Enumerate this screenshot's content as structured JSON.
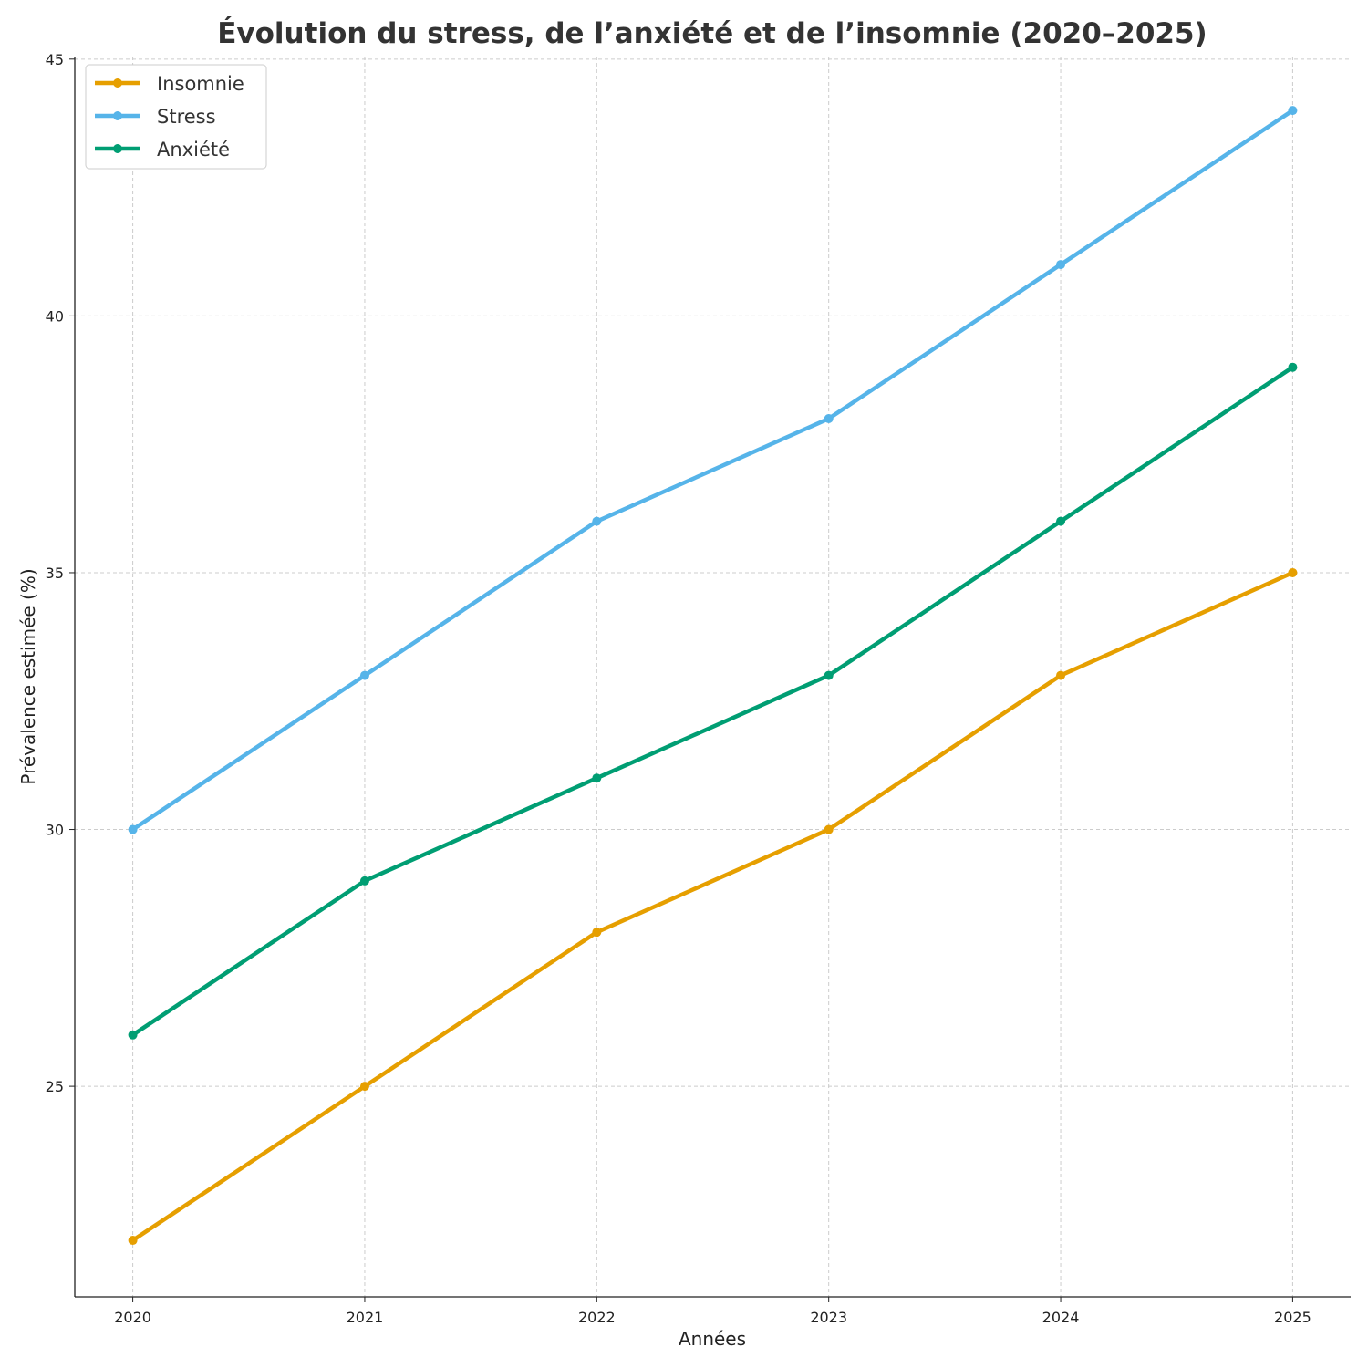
{
  "chart_data": {
    "type": "line",
    "title": "Évolution du stress, de l’anxiété et de l’insomnie (2020–2025)",
    "xlabel": "Années",
    "ylabel": "Prévalence estimée (%)",
    "x": [
      2020,
      2021,
      2022,
      2023,
      2024,
      2025
    ],
    "xlim": [
      2019.75,
      2025.25
    ],
    "ylim": [
      20.9,
      45.05
    ],
    "yticks": [
      25,
      30,
      35,
      40,
      45
    ],
    "grid": true,
    "legend_position": "top-left",
    "series": [
      {
        "name": "Insomnie",
        "color": "#E69F00",
        "values": [
          22,
          25,
          28,
          30,
          33,
          35
        ]
      },
      {
        "name": "Stress",
        "color": "#56B4E9",
        "values": [
          30,
          33,
          36,
          38,
          41,
          44
        ]
      },
      {
        "name": "Anxiété",
        "color": "#009E73",
        "values": [
          26,
          29,
          31,
          33,
          36,
          39
        ]
      }
    ]
  }
}
